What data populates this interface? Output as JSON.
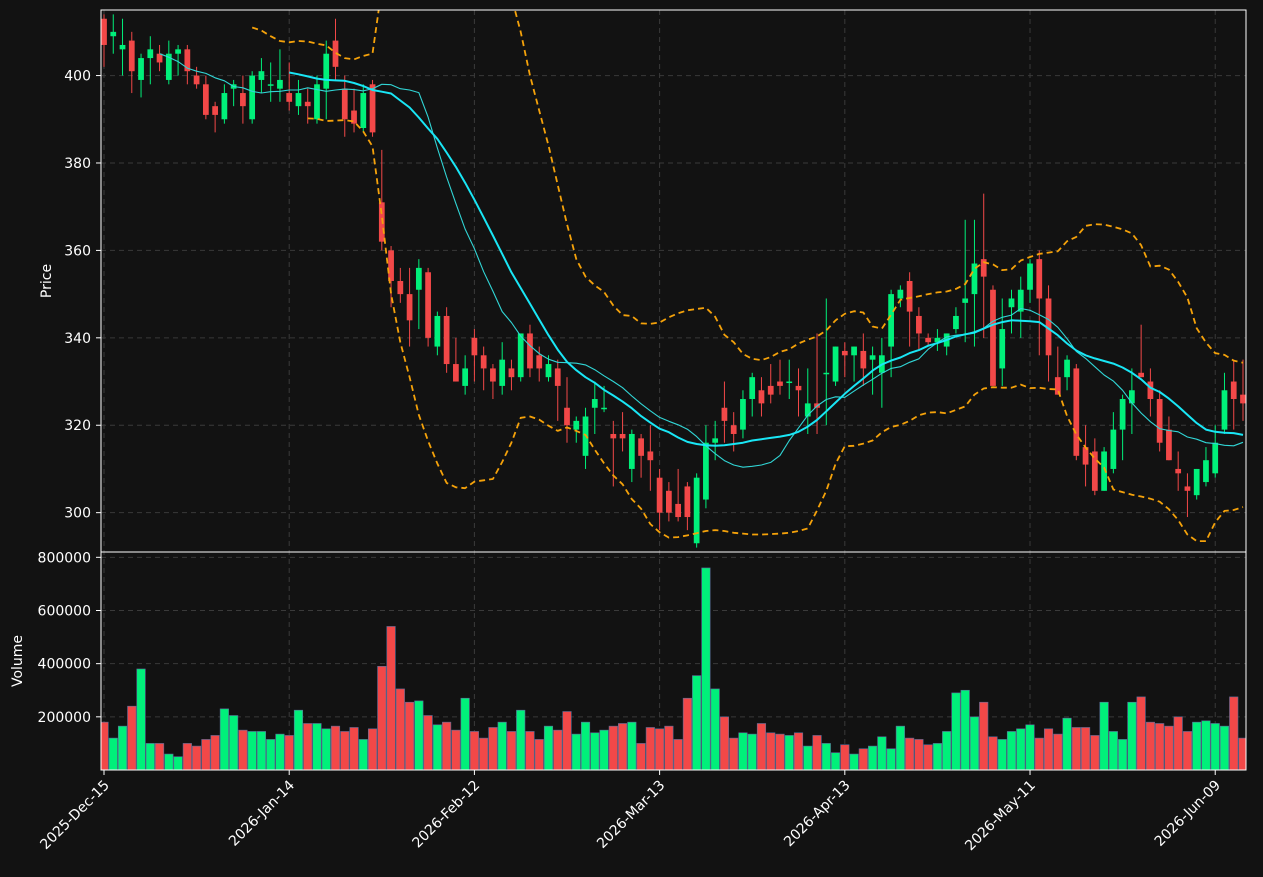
{
  "chart_data": {
    "type": "candlestick",
    "background": "#121212",
    "colors": {
      "up": "#00f07a",
      "down": "#f24848",
      "sma_fast": "#31d6d6",
      "sma_slow": "#19e6f5",
      "bands": "#f5a20a",
      "grid": "#3a3a3a",
      "frame": "#ffffff"
    },
    "price_axis": {
      "label": "Price",
      "ylim": [
        291,
        415
      ],
      "ticks": [
        300,
        320,
        340,
        360,
        380,
        400
      ]
    },
    "volume_axis": {
      "label": "Volume",
      "ylim": [
        0,
        820000
      ],
      "ticks": [
        200000,
        400000,
        600000,
        800000
      ]
    },
    "x_ticks": [
      "2025-Dec-15",
      "2026-Jan-14",
      "2026-Feb-12",
      "2026-Mar-13",
      "2026-Apr-13",
      "2026-May-11",
      "2026-Jun-09"
    ],
    "x_tick_index": [
      0,
      20,
      40,
      60,
      80,
      100,
      120
    ],
    "grid": true,
    "x_start": "2025-12-15",
    "ohlcv": [
      [
        413,
        414,
        402,
        407,
        180000
      ],
      [
        409,
        414,
        405,
        410,
        120000
      ],
      [
        406,
        413,
        400,
        407,
        165000
      ],
      [
        408,
        410,
        396,
        401,
        240000
      ],
      [
        399,
        405,
        395,
        404,
        380000
      ],
      [
        404,
        409,
        398,
        406,
        100000
      ],
      [
        405,
        407,
        401,
        403,
        100000
      ],
      [
        399,
        408,
        398,
        405,
        60000
      ],
      [
        405,
        407,
        400,
        406,
        50000
      ],
      [
        406,
        407,
        398,
        401,
        100000
      ],
      [
        400,
        402,
        397,
        398,
        90000
      ],
      [
        398,
        400,
        390,
        391,
        115000
      ],
      [
        393,
        394,
        387,
        391,
        130000
      ],
      [
        390,
        398,
        389,
        396,
        230000
      ],
      [
        397,
        399,
        393,
        398,
        205000
      ],
      [
        396,
        400,
        389,
        393,
        150000
      ],
      [
        390,
        401,
        389,
        400,
        145000
      ],
      [
        399,
        404,
        396,
        401,
        145000
      ],
      [
        398,
        403,
        394,
        398,
        115000
      ],
      [
        397,
        406,
        394,
        399,
        135000
      ],
      [
        396,
        403,
        392,
        394,
        130000
      ],
      [
        393,
        399,
        391,
        396,
        225000
      ],
      [
        394,
        397,
        389,
        393,
        175000
      ],
      [
        390,
        400,
        389,
        398,
        175000
      ],
      [
        397,
        408,
        390,
        405,
        155000
      ],
      [
        408,
        413,
        399,
        402,
        165000
      ],
      [
        397,
        400,
        386,
        390,
        145000
      ],
      [
        392,
        397,
        387,
        389,
        160000
      ],
      [
        388,
        398,
        387,
        396,
        115000
      ],
      [
        398,
        399,
        386,
        387,
        155000
      ],
      [
        371,
        383,
        360,
        362,
        390000
      ],
      [
        360,
        361,
        347,
        353,
        540000
      ],
      [
        353,
        356,
        348,
        350,
        305000
      ],
      [
        350,
        356,
        338,
        344,
        255000
      ],
      [
        351,
        358,
        342,
        356,
        260000
      ],
      [
        355,
        356,
        338,
        340,
        205000
      ],
      [
        338,
        346,
        336,
        345,
        170000
      ],
      [
        345,
        347,
        332,
        334,
        180000
      ],
      [
        334,
        340,
        330,
        330,
        150000
      ],
      [
        329,
        336,
        327,
        333,
        270000
      ],
      [
        340,
        342,
        330,
        336,
        145000
      ],
      [
        336,
        338,
        328,
        333,
        120000
      ],
      [
        333,
        334,
        326,
        330,
        160000
      ],
      [
        329,
        339,
        327,
        335,
        180000
      ],
      [
        333,
        335,
        328,
        331,
        145000
      ],
      [
        331,
        341,
        330,
        341,
        225000
      ],
      [
        341,
        343,
        331,
        333,
        145000
      ],
      [
        336,
        338,
        330,
        333,
        115000
      ],
      [
        331,
        336,
        330,
        334,
        165000
      ],
      [
        333,
        335,
        321,
        329,
        150000
      ],
      [
        324,
        331,
        316,
        320,
        220000
      ],
      [
        319,
        322,
        316,
        321,
        135000
      ],
      [
        313,
        324,
        310,
        322,
        180000
      ],
      [
        324,
        330,
        318,
        326,
        140000
      ],
      [
        324,
        329,
        323,
        324,
        150000
      ],
      [
        318,
        321,
        306,
        317,
        165000
      ],
      [
        318,
        323,
        314,
        317,
        175000
      ],
      [
        310,
        319,
        307,
        318,
        180000
      ],
      [
        317,
        318,
        308,
        313,
        100000
      ],
      [
        314,
        320,
        305,
        312,
        160000
      ],
      [
        308,
        310,
        296,
        300,
        155000
      ],
      [
        305,
        307,
        298,
        300,
        165000
      ],
      [
        302,
        310,
        298,
        299,
        115000
      ],
      [
        306,
        307,
        296,
        299,
        270000
      ],
      [
        293,
        309,
        292,
        308,
        355000
      ],
      [
        303,
        320,
        301,
        316,
        760000
      ],
      [
        316,
        321,
        312,
        317,
        305000
      ],
      [
        324,
        330,
        316,
        321,
        200000
      ],
      [
        320,
        323,
        314,
        318,
        120000
      ],
      [
        319,
        328,
        317,
        326,
        140000
      ],
      [
        326,
        332,
        322,
        331,
        135000
      ],
      [
        328,
        331,
        322,
        325,
        175000
      ],
      [
        329,
        334,
        325,
        327,
        140000
      ],
      [
        330,
        335,
        327,
        329,
        135000
      ],
      [
        330,
        335,
        326,
        330,
        130000
      ],
      [
        329,
        333,
        322,
        328,
        140000
      ],
      [
        322,
        333,
        318,
        325,
        90000
      ],
      [
        325,
        341,
        318,
        324,
        130000
      ],
      [
        332,
        349,
        320,
        332,
        100000
      ],
      [
        330,
        338,
        329,
        338,
        65000
      ],
      [
        337,
        339,
        331,
        336,
        95000
      ],
      [
        336,
        338,
        330,
        338,
        60000
      ],
      [
        337,
        341,
        329,
        333,
        80000
      ],
      [
        335,
        338,
        327,
        336,
        90000
      ],
      [
        332,
        340,
        324,
        336,
        125000
      ],
      [
        338,
        351,
        331,
        350,
        80000
      ],
      [
        349,
        352,
        347,
        351,
        165000
      ],
      [
        353,
        355,
        338,
        346,
        120000
      ],
      [
        345,
        347,
        337,
        341,
        115000
      ],
      [
        340,
        341,
        338,
        339,
        95000
      ],
      [
        339,
        342,
        337,
        340,
        100000
      ],
      [
        338,
        341,
        336,
        341,
        145000
      ],
      [
        342,
        347,
        341,
        345,
        290000
      ],
      [
        348,
        367,
        339,
        349,
        300000
      ],
      [
        350,
        367,
        338,
        357,
        200000
      ],
      [
        358,
        373,
        340,
        354,
        255000
      ],
      [
        351,
        352,
        329,
        329,
        125000
      ],
      [
        333,
        349,
        329,
        342,
        115000
      ],
      [
        347,
        351,
        341,
        349,
        145000
      ],
      [
        346,
        354,
        340,
        351,
        155000
      ],
      [
        351,
        358,
        348,
        357,
        170000
      ],
      [
        358,
        360,
        336,
        349,
        120000
      ],
      [
        349,
        352,
        330,
        336,
        155000
      ],
      [
        331,
        338,
        327,
        327,
        135000
      ],
      [
        331,
        336,
        328,
        335,
        195000
      ],
      [
        333,
        334,
        312,
        313,
        160000
      ],
      [
        315,
        320,
        306,
        311,
        160000
      ],
      [
        314,
        317,
        304,
        305,
        130000
      ],
      [
        305,
        315,
        305,
        314,
        255000
      ],
      [
        310,
        323,
        309,
        319,
        145000
      ],
      [
        319,
        327,
        312,
        326,
        115000
      ],
      [
        325,
        333,
        318,
        328,
        255000
      ],
      [
        332,
        343,
        331,
        331,
        275000
      ],
      [
        330,
        333,
        322,
        326,
        180000
      ],
      [
        326,
        328,
        314,
        316,
        175000
      ],
      [
        319,
        322,
        312,
        312,
        165000
      ],
      [
        310,
        314,
        305,
        309,
        200000
      ],
      [
        306,
        309,
        299,
        305,
        145000
      ],
      [
        304,
        310,
        303,
        310,
        180000
      ],
      [
        307,
        315,
        306,
        312,
        185000
      ],
      [
        309,
        320,
        308,
        316,
        175000
      ],
      [
        319,
        332,
        318,
        328,
        165000
      ],
      [
        330,
        335,
        319,
        326,
        275000
      ],
      [
        327,
        335,
        321,
        325,
        120000
      ]
    ],
    "sma_fast": [
      405,
      404.2,
      403.2,
      401.7,
      401,
      400.5,
      399.5,
      398.8,
      397.5,
      397.2,
      396.4,
      396,
      396.3,
      396.4,
      396.7,
      396.7,
      397.2,
      396.8,
      396.4,
      396.7,
      396.9,
      396.8,
      396.5,
      397,
      398,
      397.9,
      397,
      396.7,
      396.1,
      390.5,
      383.4,
      376.8,
      370.7,
      364.9,
      360.4,
      355.1,
      350.7,
      346,
      343.5,
      340.4,
      338.2,
      336.4,
      335.1,
      334.4,
      334.3,
      334.2,
      333.8,
      332.7,
      331.3,
      330,
      328.6,
      326.7,
      324.9,
      323.3,
      321.8,
      320.9,
      320.1,
      319.1,
      317.4,
      315.3,
      313.5,
      311.9,
      310.9,
      310.4,
      310.6,
      310.9,
      311.5,
      313.1,
      316.5,
      319.4,
      322.3,
      324.4,
      325.9,
      326.5,
      326.4,
      327.8,
      329.2,
      330.5,
      331.9,
      333,
      333.4,
      334.4,
      335.2,
      337.4,
      338.9,
      340.2,
      340.6,
      340.8,
      341.4,
      342.2,
      343.8,
      344.7,
      345.2,
      346.7,
      346.3,
      345.3,
      344.2,
      342.4,
      339.8,
      336.9,
      335.3,
      333.4,
      331.5,
      330.1,
      328,
      325.1,
      322.8,
      320.8,
      319.2,
      318.8,
      318.5,
      317.3,
      316.8,
      316,
      315.8,
      315.4,
      315.3,
      316.1
    ],
    "sma_slow": [
      400.7,
      400.3,
      399.8,
      399.3,
      399,
      398.9,
      398.8,
      398.3,
      397.6,
      396.7,
      396.3,
      395.9,
      394.3,
      392.7,
      390.4,
      387.9,
      385.5,
      382.4,
      379.1,
      375.5,
      371.6,
      367.5,
      363.4,
      359.2,
      355,
      351.4,
      347.8,
      344.2,
      340.6,
      337.3,
      334.5,
      332.6,
      331,
      329.7,
      328.1,
      326.8,
      325.4,
      323.9,
      322.1,
      320.6,
      319.2,
      318.4,
      317.2,
      316.2,
      315.7,
      315.4,
      315.3,
      315.4,
      315.7,
      316,
      316.5,
      316.8,
      317.1,
      317.4,
      317.8,
      318.5,
      319.7,
      321.2,
      323.2,
      325.2,
      327.2,
      329,
      330.7,
      332.5,
      333.9,
      334.8,
      335.5,
      336.5,
      337.2,
      338.2,
      338.8,
      339.5,
      340.3,
      340.8,
      341.2,
      342.1,
      343,
      343.6,
      344,
      343.9,
      343.8,
      343.6,
      342.1,
      340.6,
      338.7,
      337.1,
      336,
      335.3,
      334.7,
      334.1,
      333.2,
      332,
      330.5,
      328.6,
      327.6,
      326.1,
      324.3,
      322.4,
      320.5,
      319,
      318.5,
      318.3,
      318.2,
      317.8
    ],
    "band_upper": [
      411,
      410.3,
      409,
      407.9,
      407.6,
      407.9,
      407.8,
      407.3,
      406.9,
      405.2,
      404,
      403.7,
      404.5,
      405,
      420,
      433,
      442,
      447,
      450,
      452,
      452,
      451,
      449,
      446,
      442,
      436,
      431,
      425,
      418,
      410,
      400,
      392,
      384,
      375,
      366,
      358,
      354,
      352,
      350.5,
      347.4,
      345.2,
      345,
      343.3,
      343.2,
      343.5,
      344.7,
      345.6,
      346.3,
      346.6,
      346.9,
      344.8,
      340.7,
      339,
      336.3,
      335.2,
      334.9,
      335.6,
      336.8,
      337.4,
      338.7,
      339.6,
      340.3,
      341.7,
      344,
      345.5,
      346.1,
      345.8,
      342.6,
      342.1,
      345.3,
      348.7,
      349.1,
      349.5,
      350,
      350.4,
      350.6,
      351.2,
      352.3,
      355.8,
      357.3,
      356.8,
      355.5,
      355.7,
      357.7,
      358.5,
      359.2,
      359.5,
      359.8,
      362.1,
      363.1,
      365.6,
      366,
      365.9,
      365.4,
      364.8,
      363.9,
      361.2,
      356.3,
      356.5,
      355.6,
      352.8,
      349.2,
      342.2,
      338.9,
      336.5,
      336.1,
      334.8,
      334.3
    ],
    "band_lower": [
      390.2,
      390.1,
      389.6,
      389.7,
      389.8,
      389.5,
      387.2,
      383.8,
      368,
      350,
      339,
      331,
      322.4,
      316.4,
      311.2,
      306.8,
      305.8,
      305.6,
      307.1,
      307.4,
      307.7,
      311.6,
      316,
      321.7,
      322,
      321.3,
      319.9,
      318.7,
      319.5,
      318.7,
      317.8,
      314.4,
      311.3,
      308.5,
      306.5,
      303.1,
      300.9,
      297.4,
      295.5,
      294.3,
      294.4,
      294.8,
      295.3,
      295.8,
      296,
      295.8,
      295.4,
      295.2,
      295,
      295,
      295.1,
      295.2,
      295.4,
      295.8,
      296.4,
      300.5,
      305,
      311.2,
      315.2,
      315.3,
      315.8,
      316.5,
      318.4,
      319.6,
      320.1,
      321,
      322.3,
      322.9,
      323,
      322.7,
      323.5,
      324.3,
      327,
      328.4,
      328.7,
      328.6,
      328.6,
      329.3,
      328.5,
      328.6,
      328.3,
      328.2,
      322.1,
      317.9,
      314.9,
      312.4,
      310.3,
      305.3,
      304.7,
      304.1,
      303.7,
      303.2,
      302.5,
      300.8,
      298.3,
      295,
      293.5,
      293.5,
      297.8,
      300.4,
      300.6,
      301.3
    ]
  }
}
